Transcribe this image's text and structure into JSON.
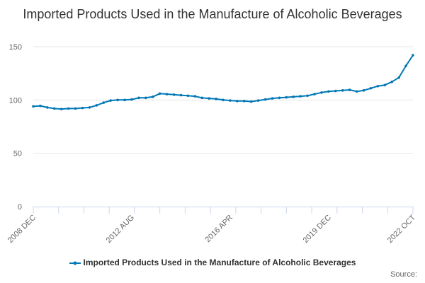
{
  "chart_data": {
    "type": "line",
    "title": "Imported Products Used in the Manufacture of Alcoholic Beverages",
    "xlabel": "",
    "ylabel": "",
    "ylim": [
      0,
      150
    ],
    "y_ticks": [
      "0",
      "50",
      "100",
      "150"
    ],
    "x_tick_labels": [
      "2008 DEC",
      "2012 AUG",
      "2016 APR",
      "2019 DEC",
      "2022 OCT"
    ],
    "grid": true,
    "legend_position": "bottom",
    "series": [
      {
        "name": "Imported Products Used in the Manufacture of Alcoholic Beverages",
        "color": "#0077b6",
        "x": [
          "2008 DEC",
          "2009 MAR",
          "2009 JUN",
          "2009 SEP",
          "2009 DEC",
          "2010 MAR",
          "2010 JUN",
          "2010 SEP",
          "2010 DEC",
          "2011 MAR",
          "2011 JUN",
          "2011 SEP",
          "2011 DEC",
          "2012 MAR",
          "2012 AUG",
          "2012 DEC",
          "2013 MAR",
          "2013 JUN",
          "2013 SEP",
          "2013 DEC",
          "2014 MAR",
          "2014 JUN",
          "2014 SEP",
          "2014 DEC",
          "2015 MAR",
          "2015 JUN",
          "2015 SEP",
          "2015 DEC",
          "2016 APR",
          "2016 JUL",
          "2016 OCT",
          "2017 JAN",
          "2017 APR",
          "2017 JUL",
          "2017 OCT",
          "2018 JAN",
          "2018 APR",
          "2018 JUL",
          "2018 OCT",
          "2019 JAN",
          "2019 APR",
          "2019 JUL",
          "2019 DEC",
          "2020 MAR",
          "2020 JUN",
          "2020 SEP",
          "2020 DEC",
          "2021 MAR",
          "2021 JUN",
          "2021 SEP",
          "2021 DEC",
          "2022 MAR",
          "2022 JUN",
          "2022 AUG",
          "2022 OCT"
        ],
        "values": [
          94,
          94.5,
          93,
          92,
          91.5,
          92,
          92,
          92.5,
          93,
          95,
          97.5,
          99.5,
          100,
          100,
          100.5,
          102,
          102,
          103,
          106,
          105.5,
          105,
          104.5,
          104,
          103.5,
          102,
          101.5,
          101,
          100,
          99.5,
          99,
          99,
          98.5,
          99.5,
          100.5,
          101.5,
          102,
          102.5,
          103,
          103.5,
          104,
          105.5,
          107,
          108,
          108.5,
          109,
          109.5,
          108,
          109,
          111,
          113,
          114,
          117,
          121,
          132,
          142
        ]
      }
    ]
  },
  "source_label": "Source:"
}
